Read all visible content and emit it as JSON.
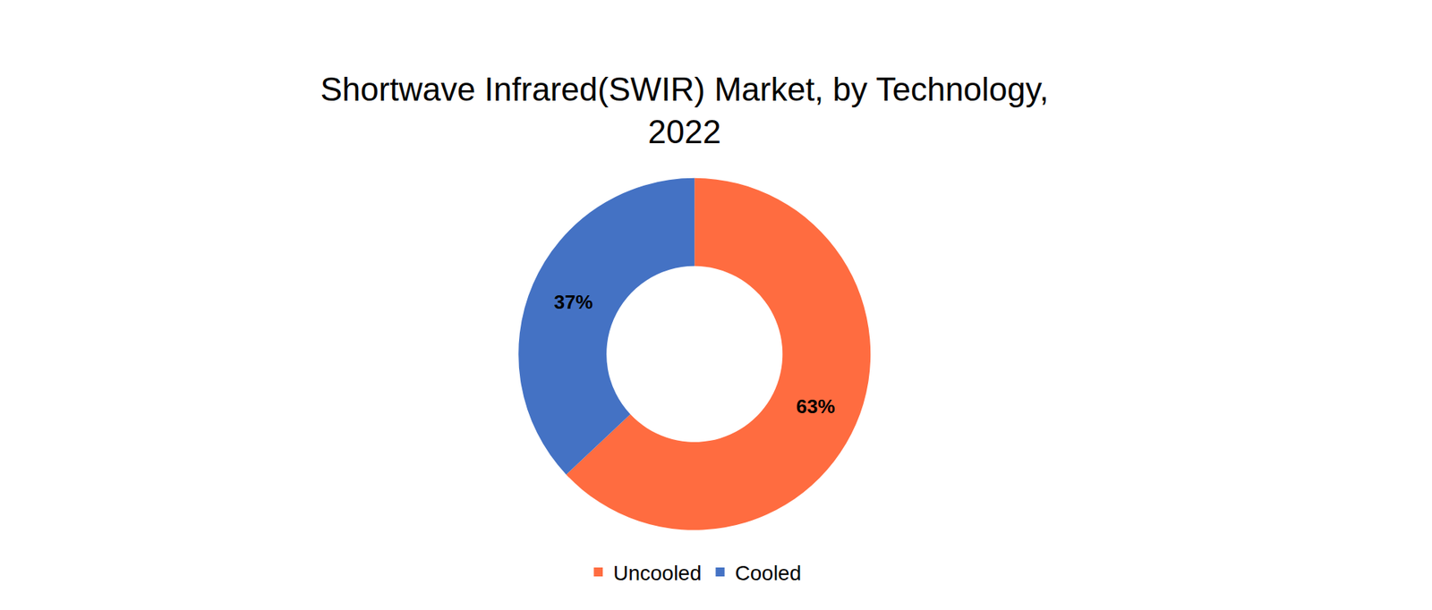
{
  "chart_data": {
    "type": "pie",
    "title": "Shortwave Infrared(SWIR) Market, by Technology,\n2022",
    "categories": [
      "Uncooled",
      "Cooled"
    ],
    "values": [
      63,
      37
    ],
    "value_labels": [
      "63%",
      "37%"
    ],
    "colors": [
      "#ff6c40",
      "#4472c4"
    ],
    "data_labels": true,
    "legend": "bottom"
  }
}
